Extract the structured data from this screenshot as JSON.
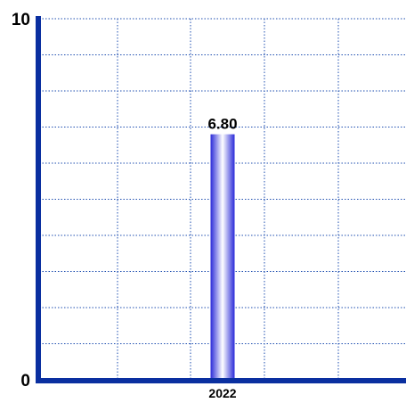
{
  "colors": {
    "axis": "#0a2fa0",
    "grid": "#1f4fb0",
    "bar_edge": "#2a2ad8",
    "bar_center": "#ffffff",
    "text": "#000000"
  },
  "chart_data": {
    "type": "bar",
    "title": "",
    "xlabel": "",
    "ylabel": "",
    "categories": [
      "2022"
    ],
    "values": [
      6.8
    ],
    "data_labels": [
      "6.80"
    ],
    "ylim": [
      0,
      10
    ],
    "y_tick_labels": [
      "0",
      "10"
    ],
    "grid": true,
    "legend": "none"
  }
}
